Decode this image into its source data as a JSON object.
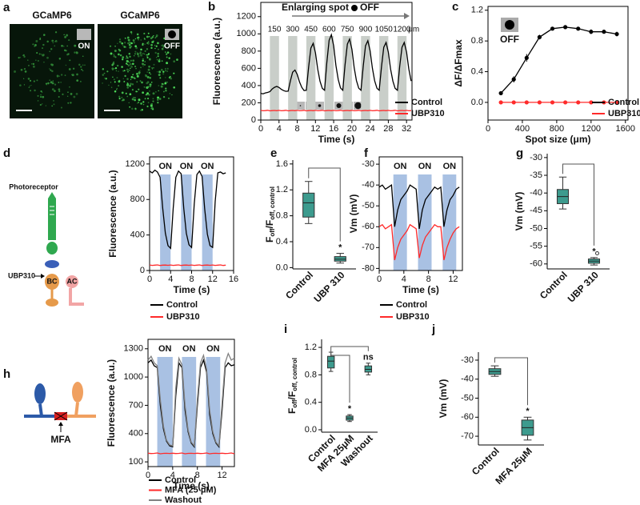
{
  "images": {
    "label": "a",
    "panels": [
      {
        "title": "GCaMP6",
        "tag": "ON"
      },
      {
        "title": "GCaMP6",
        "tag": "OFF"
      }
    ]
  },
  "diagrams": [
    {
      "label": "d",
      "texts": [
        "Photoreceptor",
        "UBP310",
        "BC",
        "AC"
      ]
    },
    {
      "label": "h",
      "texts": [
        "MFA"
      ]
    }
  ],
  "chart_data": [
    {
      "type": "line",
      "label": "b",
      "xlabel": "Time (s)",
      "ylabel": "Fluorescence (a.u.)",
      "annotation": "Enlarging spot",
      "annotation_tag": "OFF",
      "x": [
        0,
        0.5,
        1,
        1.5,
        2,
        2.5,
        3,
        3.5,
        4,
        4.5,
        5,
        5.5,
        6,
        6.5,
        7,
        7.5,
        8,
        8.5,
        9,
        9.5,
        10,
        10.5,
        11,
        11.5,
        12,
        12.5,
        13,
        13.5,
        14,
        14.5,
        15,
        15.5,
        16,
        16.5,
        17,
        17.5,
        18,
        18.5,
        19,
        19.5,
        20,
        20.5,
        21,
        21.5,
        22,
        22.5,
        23,
        23.5,
        24,
        24.5,
        25,
        25.5,
        26,
        26.5,
        27,
        27.5,
        28,
        28.5,
        29,
        29.5,
        30,
        30.5,
        31,
        31.5,
        32,
        32.5,
        33
      ],
      "series": [
        {
          "name": "Control",
          "color": "#000000",
          "values": [
            310,
            305,
            315,
            320,
            330,
            360,
            380,
            390,
            378,
            357,
            342,
            333,
            335,
            455,
            555,
            580,
            530,
            442,
            380,
            342,
            345,
            615,
            835,
            890,
            780,
            588,
            450,
            368,
            345,
            665,
            925,
            990,
            860,
            633,
            470,
            373,
            345,
            640,
            880,
            940,
            820,
            610,
            460,
            370,
            345,
            630,
            862,
            920,
            804,
            601,
            456,
            369,
            345,
            620,
            844,
            900,
            788,
            592,
            452,
            368,
            345,
            620,
            844,
            900,
            788,
            592,
            452
          ]
        },
        {
          "name": "UBP310",
          "color": "#ff2a2a",
          "values": [
            112,
            108,
            110,
            113,
            107,
            110,
            111,
            109,
            112,
            108,
            110,
            113,
            107,
            110,
            111,
            109,
            112,
            108,
            110,
            113,
            107,
            110,
            111,
            109,
            112,
            108,
            110,
            113,
            107,
            110,
            111,
            109,
            112,
            108,
            110,
            113,
            107,
            110,
            111,
            109,
            112,
            108,
            110,
            113,
            107,
            110,
            111,
            109,
            112,
            108,
            110,
            113,
            107,
            110,
            111,
            109,
            112,
            108,
            110,
            113,
            107,
            110,
            111,
            109,
            112,
            108,
            110
          ]
        }
      ],
      "spans": [
        [
          2,
          4
        ],
        [
          6,
          8
        ],
        [
          10,
          12
        ],
        [
          14,
          16
        ],
        [
          18,
          20
        ],
        [
          22,
          24
        ],
        [
          26,
          28
        ],
        [
          30,
          32
        ]
      ],
      "span_labels": [
        "150",
        "300",
        "450",
        "600",
        "750",
        "900",
        "1050",
        "1200"
      ],
      "span_unit": "μm",
      "span_color": "#c9cec9",
      "xlim": [
        0,
        33.2
      ],
      "ylim": [
        0,
        1365
      ],
      "xticks": [
        0,
        4,
        8,
        12,
        16,
        20,
        24,
        28,
        32
      ],
      "yticks": [
        0,
        200,
        400,
        600,
        800,
        1000,
        1200
      ]
    },
    {
      "type": "line",
      "label": "c",
      "xlabel": "Spot size (μm)",
      "ylabel": "ΔF/ΔFmax",
      "inset_label": "OFF",
      "markers": true,
      "x": [
        150,
        300,
        450,
        600,
        750,
        900,
        1050,
        1200,
        1350,
        1500
      ],
      "series": [
        {
          "name": "Control",
          "color": "#000000",
          "values": [
            0.12,
            0.3,
            0.58,
            0.85,
            0.96,
            0.98,
            0.96,
            0.92,
            0.92,
            0.89
          ],
          "errors": [
            0.02,
            0.04,
            0.05,
            0.03,
            0.02,
            0.02,
            0.02,
            0.03,
            0.02,
            0.03
          ]
        },
        {
          "name": "UBP310",
          "color": "#ff2a2a",
          "values": [
            0,
            0,
            0,
            0,
            0,
            0,
            0,
            0,
            0,
            0
          ]
        }
      ],
      "xlim": [
        0,
        1630
      ],
      "ylim": [
        -0.23,
        1.25
      ],
      "xticks": [
        0,
        400,
        800,
        1200,
        1600
      ],
      "yticks": [
        {
          "value": 0,
          "label": "0.0"
        },
        0.4,
        0.8,
        1.2
      ]
    },
    {
      "type": "line",
      "xlabel": "Time (s)",
      "ylabel": "Fluorescence (a.u.)",
      "x": [
        0,
        0.5,
        1,
        1.5,
        2,
        2.5,
        3,
        3.5,
        4,
        4.5,
        5,
        5.5,
        6,
        6.5,
        7,
        7.5,
        8,
        8.5,
        9,
        9.5,
        10,
        10.5,
        11,
        11.5,
        12,
        12.5,
        13,
        13.5,
        14,
        14.5
      ],
      "series": [
        {
          "name": "Control",
          "color": "#000000",
          "values": [
            1120,
            1100,
            1130,
            1110,
            1050,
            700,
            420,
            280,
            250,
            700,
            1050,
            1120,
            1090,
            700,
            420,
            290,
            260,
            750,
            1080,
            1120,
            1060,
            690,
            410,
            280,
            260,
            780,
            1100,
            1110,
            1090,
            1100
          ]
        },
        {
          "name": "UBP310",
          "color": "#ff2a2a",
          "values": [
            62,
            58,
            60,
            63,
            57,
            60,
            61,
            59,
            62,
            58,
            60,
            63,
            57,
            60,
            61,
            59,
            62,
            58,
            60,
            63,
            57,
            60,
            61,
            59,
            62,
            58,
            60,
            63,
            57,
            60
          ]
        }
      ],
      "spans": [
        [
          2,
          4
        ],
        [
          6,
          8
        ],
        [
          10,
          12
        ]
      ],
      "span_labels": [
        "ON",
        "ON",
        "ON"
      ],
      "span_color": "#a9c1e3",
      "xlim": [
        0,
        16
      ],
      "ylim": [
        0,
        1280
      ],
      "xticks": [
        0,
        4,
        8,
        12,
        16
      ],
      "yticks": [
        0,
        400,
        800,
        1200
      ]
    },
    {
      "type": "box",
      "label": "e",
      "ylabel": [
        "F",
        "off",
        "/F",
        "off, control"
      ],
      "color": "#3d9b8e",
      "categories": [
        "Control",
        "UBP 310"
      ],
      "boxes": [
        {
          "low": 0.68,
          "q1": 0.78,
          "median": 1.0,
          "q3": 1.15,
          "high": 1.33
        },
        {
          "low": 0.07,
          "q1": 0.1,
          "median": 0.13,
          "q3": 0.17,
          "high": 0.22,
          "mark": "*"
        }
      ],
      "ylim": [
        -0.02,
        1.66
      ],
      "yticks": [
        {
          "value": 0,
          "label": "0.0"
        },
        0.4,
        0.8,
        1.2,
        1.6
      ]
    },
    {
      "type": "line",
      "label": "f",
      "xlabel": "Time (s)",
      "ylabel": "Vm  (mV)",
      "x": [
        0,
        0.5,
        1,
        1.5,
        2,
        2.5,
        3,
        3.5,
        4,
        4.5,
        5,
        5.5,
        6,
        6.5,
        7,
        7.5,
        8,
        8.5,
        9,
        9.5,
        10,
        10.5,
        11,
        11.5,
        12,
        12.5,
        13
      ],
      "series": [
        {
          "name": "Control",
          "color": "#000000",
          "values": [
            -41,
            -40,
            -42,
            -41,
            -40,
            -60,
            -52,
            -47,
            -45,
            -43,
            -40,
            -41,
            -42,
            -61,
            -52,
            -47,
            -45,
            -43,
            -41,
            -42,
            -41,
            -60,
            -52,
            -47,
            -45,
            -42,
            -41
          ]
        },
        {
          "name": "UBP310",
          "color": "#ff2a2a",
          "values": [
            -60,
            -59,
            -61,
            -60,
            -59,
            -76,
            -70,
            -66,
            -64,
            -62,
            -59,
            -60,
            -61,
            -75,
            -69,
            -65,
            -63,
            -61,
            -59,
            -60,
            -60,
            -76,
            -70,
            -66,
            -63,
            -61,
            -60
          ]
        }
      ],
      "spans": [
        [
          2.3,
          4.5
        ],
        [
          6.3,
          8.5
        ],
        [
          10.3,
          12.5
        ]
      ],
      "span_labels": [
        "ON",
        "ON",
        "ON"
      ],
      "span_color": "#a9c1e3",
      "xlim": [
        0,
        13.5
      ],
      "ylim": [
        -81,
        -26.5
      ],
      "xticks": [
        0,
        4,
        8,
        12
      ],
      "yticks": [
        -30,
        -40,
        -50,
        -60,
        -70,
        -80
      ]
    },
    {
      "type": "box",
      "label": "g",
      "ylabel": "Vm  (mV)",
      "color": "#3d9b8e",
      "categories": [
        "Control",
        "UBP 310"
      ],
      "boxes": [
        {
          "low": -44.5,
          "q1": -43,
          "median": -41,
          "q3": -39,
          "high": -35.5
        },
        {
          "low": -60.3,
          "q1": -59.8,
          "median": -59.2,
          "q3": -58.6,
          "high": -58.2,
          "outliers": [
            -57
          ],
          "mark": "*"
        }
      ],
      "ylim": [
        -61.4,
        -28.9
      ],
      "yticks": [
        -30,
        -35,
        -40,
        -45,
        -50,
        -55,
        -60
      ]
    },
    {
      "type": "line",
      "xlabel": "Time (s)",
      "ylabel": "Fluorescence (a.u.)",
      "x": [
        0,
        0.5,
        1,
        1.5,
        2,
        2.5,
        3,
        3.5,
        4,
        4.5,
        5,
        5.5,
        6,
        6.5,
        7,
        7.5,
        8,
        8.5,
        9,
        9.5,
        10,
        10.5,
        11,
        11.5,
        12,
        12.5,
        13,
        13.5,
        14
      ],
      "series": [
        {
          "name": "Control",
          "color": "#000000",
          "values": [
            1150,
            1180,
            1120,
            1100,
            700,
            450,
            320,
            270,
            260,
            800,
            1150,
            1100,
            650,
            420,
            300,
            260,
            700,
            1100,
            1180,
            1050,
            600,
            400,
            300,
            260,
            650,
            1100,
            1150,
            1120,
            1130
          ]
        },
        {
          "name": "MFA (25 μM)",
          "color": "#ff2a2a",
          "values": [
            192,
            188,
            190,
            194,
            186,
            190,
            191,
            189,
            192,
            188,
            190,
            194,
            186,
            190,
            191,
            189,
            192,
            188,
            190,
            194,
            186,
            190,
            191,
            189,
            192,
            188,
            190,
            194,
            186
          ]
        },
        {
          "name": "Washout",
          "color": "#808080",
          "values": [
            1180,
            1220,
            1150,
            1120,
            760,
            480,
            330,
            280,
            270,
            880,
            1200,
            1130,
            700,
            440,
            310,
            270,
            760,
            1150,
            1230,
            1080,
            650,
            420,
            310,
            270,
            720,
            1150,
            1250,
            1180,
            1200
          ]
        }
      ],
      "spans": [
        [
          1.5,
          4
        ],
        [
          5.5,
          7.8
        ],
        [
          9.4,
          11.7
        ]
      ],
      "span_labels": [
        "ON",
        "ON",
        "ON"
      ],
      "span_color": "#a9c1e3",
      "xlim": [
        0,
        14
      ],
      "ylim": [
        50,
        1400
      ],
      "xticks": [
        0,
        4,
        8,
        12
      ],
      "yticks": [
        100,
        400,
        700,
        1000,
        1300
      ]
    },
    {
      "type": "box",
      "label": "i",
      "ylabel": [
        "F",
        "off",
        "/F",
        "off, control"
      ],
      "color": "#3d9b8e",
      "categories": [
        "Control",
        "MFA 25μM",
        "Washout"
      ],
      "boxes": [
        {
          "low": 0.85,
          "q1": 0.9,
          "median": 1.0,
          "q3": 1.07,
          "high": 1.13
        },
        {
          "low": 0.12,
          "q1": 0.14,
          "median": 0.17,
          "q3": 0.2,
          "high": 0.22,
          "mark": "*"
        },
        {
          "low": 0.8,
          "q1": 0.84,
          "median": 0.88,
          "q3": 0.93,
          "high": 0.97,
          "mark": "ns"
        }
      ],
      "ylim": [
        -0.035,
        1.317
      ],
      "yticks": [
        {
          "value": 0,
          "label": "0.0"
        },
        0.4,
        0.8,
        1.2
      ]
    },
    {
      "type": "box",
      "label": "j",
      "ylabel": "Vm  (mV)",
      "color": "#3d9b8e",
      "categories": [
        "Control",
        "MFA 25μM"
      ],
      "boxes": [
        {
          "low": -38.5,
          "q1": -37.5,
          "median": -36,
          "q3": -34.5,
          "high": -33
        },
        {
          "low": -72,
          "q1": -69.5,
          "median": -65.5,
          "q3": -61.5,
          "high": -60,
          "mark": "*"
        }
      ],
      "ylim": [
        -74.6,
        -25.8
      ],
      "yticks": [
        -30,
        -40,
        -50,
        -60,
        -70
      ]
    }
  ]
}
